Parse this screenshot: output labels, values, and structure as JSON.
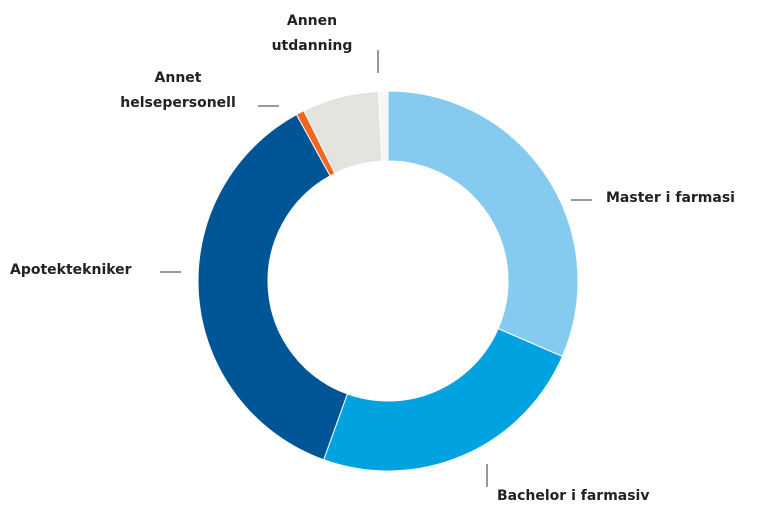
{
  "chart_data": {
    "type": "donut",
    "categories": [
      "Master i farmasi",
      "Bachelor i farmasiv",
      "Apotektekniker",
      null,
      "Annet helsepersonell",
      "Annen utdanning"
    ],
    "values": [
      31.5,
      24,
      36.5,
      0.7,
      6.5,
      0.8
    ],
    "colors": [
      "#85cbef",
      "#00a3e0",
      "#005596",
      "#f26522",
      "#e5e3de",
      "#f6f6f4"
    ]
  }
}
